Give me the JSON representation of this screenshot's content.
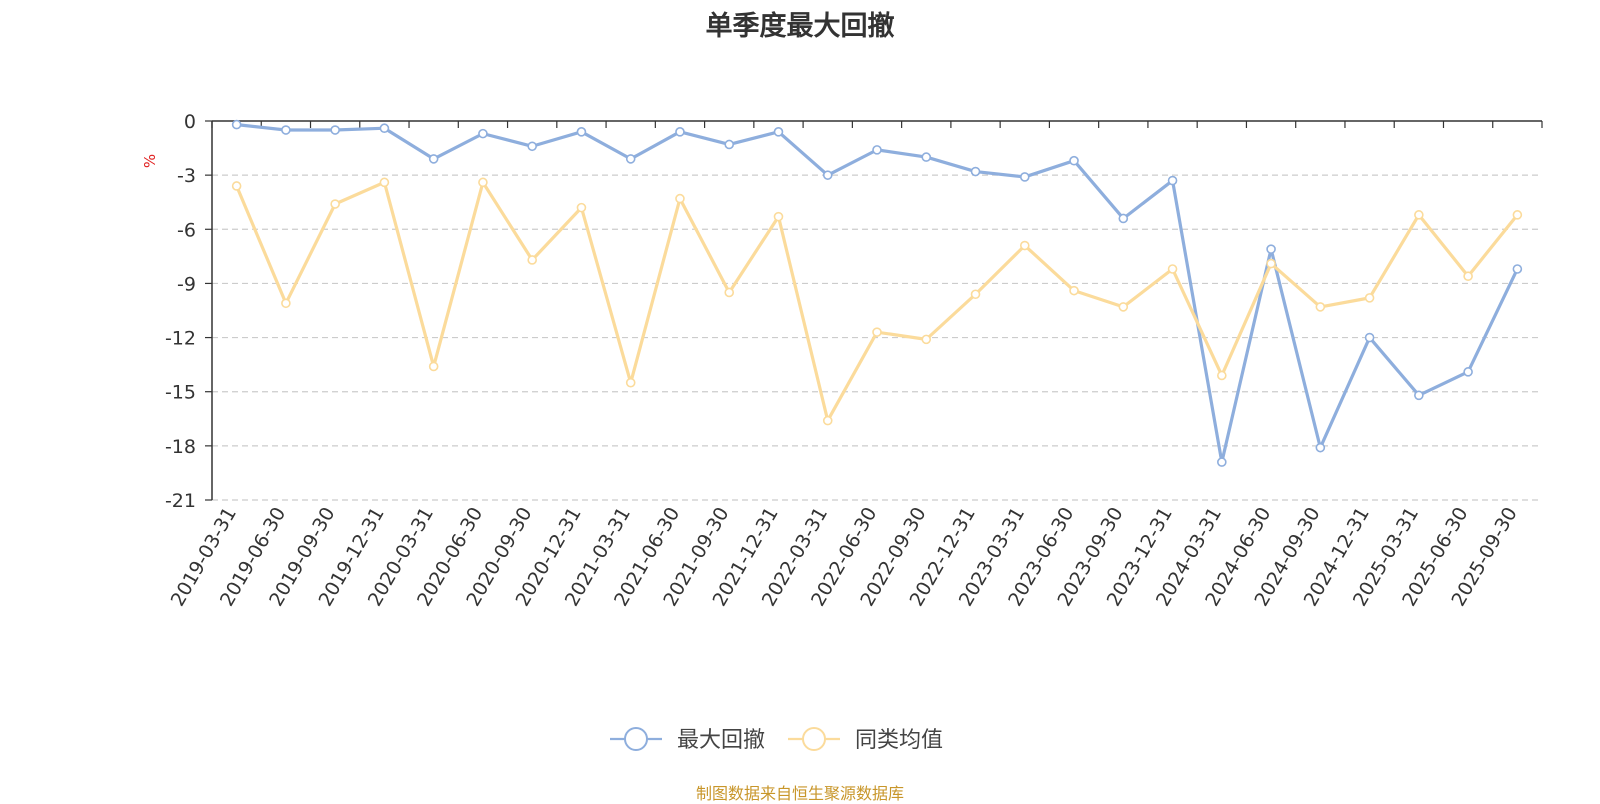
{
  "title": "单季度最大回撤",
  "source_note": "制图数据来自恒生聚源数据库",
  "chart_data": {
    "type": "line",
    "ylabel": "%",
    "ylim": [
      -21,
      0
    ],
    "yticks": [
      0,
      -3,
      -6,
      -9,
      -12,
      -15,
      -18,
      -21
    ],
    "grid": true,
    "legend_position": "bottom-center",
    "categories": [
      "2019-03-31",
      "2019-06-30",
      "2019-09-30",
      "2019-12-31",
      "2020-03-31",
      "2020-06-30",
      "2020-09-30",
      "2020-12-31",
      "2021-03-31",
      "2021-06-30",
      "2021-09-30",
      "2021-12-31",
      "2022-03-31",
      "2022-06-30",
      "2022-09-30",
      "2022-12-31",
      "2023-03-31",
      "2023-06-30",
      "2023-09-30",
      "2023-12-31",
      "2024-03-31",
      "2024-06-30",
      "2024-09-30",
      "2024-12-31",
      "2025-03-31",
      "2025-06-30",
      "2025-09-30"
    ],
    "series": [
      {
        "name": "最大回撤",
        "color": "#8eaedd",
        "values": [
          -0.2,
          -0.5,
          -0.5,
          -0.4,
          -2.1,
          -0.7,
          -1.4,
          -0.6,
          -2.1,
          -0.6,
          -1.3,
          -0.6,
          -3.0,
          -1.6,
          -2.0,
          -2.8,
          -3.1,
          -2.2,
          -5.4,
          -3.3,
          -18.9,
          -7.1,
          -18.1,
          -12.0,
          -15.2,
          -13.9,
          -8.2
        ]
      },
      {
        "name": "同类均值",
        "color": "#fbdb9b",
        "values": [
          -3.6,
          -10.1,
          -4.6,
          -3.4,
          -13.6,
          -3.4,
          -7.7,
          -4.8,
          -14.5,
          -4.3,
          -9.5,
          -5.3,
          -16.6,
          -11.7,
          -12.1,
          -9.6,
          -6.9,
          -9.4,
          -10.3,
          -8.2,
          -14.1,
          -7.9,
          -10.3,
          -9.8,
          -5.2,
          -8.6,
          -5.2
        ]
      }
    ]
  }
}
